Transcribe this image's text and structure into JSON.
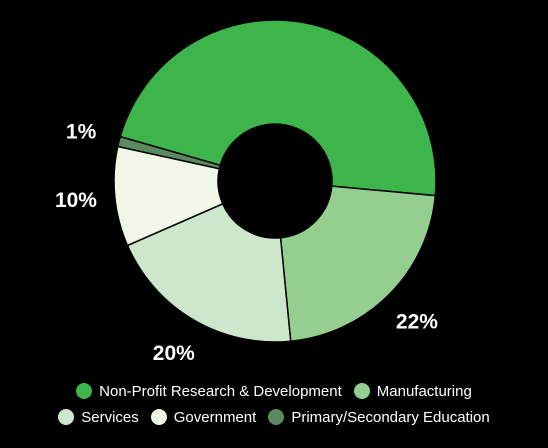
{
  "chart_data": {
    "type": "pie",
    "donut": true,
    "title": "",
    "slices": [
      {
        "label": "Non-Profit Research & Development",
        "value": 47,
        "display": "47%",
        "color": "#3db54a"
      },
      {
        "label": "Manufacturing",
        "value": 22,
        "display": "22%",
        "color": "#94cf8f"
      },
      {
        "label": "Services",
        "value": 20,
        "display": "20%",
        "color": "#cde7cc"
      },
      {
        "label": "Government",
        "value": 10,
        "display": "10%",
        "color": "#f1f7e8"
      },
      {
        "label": "Primary/Secondary Education",
        "value": 1,
        "display": "1%",
        "color": "#5c8a60"
      }
    ],
    "legend": {
      "placement": "bottom",
      "rows": [
        [
          "Non-Profit Research & Development",
          "Manufacturing"
        ],
        [
          "Services",
          "Government",
          "Primary/Secondary Education"
        ]
      ]
    }
  }
}
